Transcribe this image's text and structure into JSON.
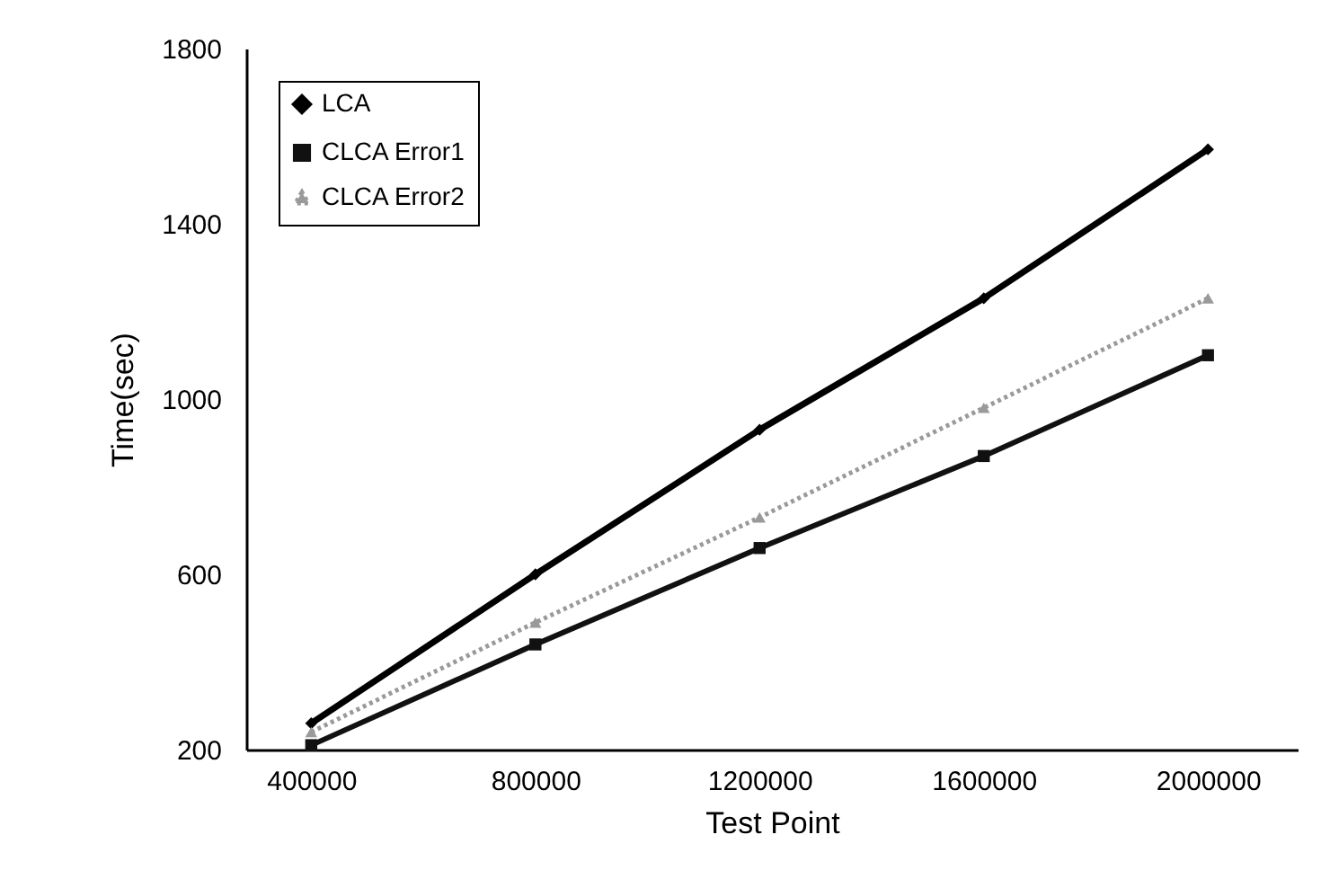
{
  "chart_data": {
    "type": "line",
    "xlabel": "Test Point",
    "ylabel": "Time(sec)",
    "categories": [
      "400000",
      "800000",
      "1200000",
      "1600000",
      "2000000"
    ],
    "series": [
      {
        "name": "LCA",
        "color": "#000000",
        "marker": "diamond",
        "line_style": "solid",
        "values": [
          260,
          600,
          930,
          1230,
          1570
        ]
      },
      {
        "name": "CLCA Error1",
        "color": "#111111",
        "marker": "square",
        "line_style": "solid",
        "values": [
          210,
          440,
          660,
          870,
          1100
        ]
      },
      {
        "name": "CLCA Error2",
        "color": "#9a9a9a",
        "marker": "triangle",
        "line_style": "dotted",
        "values": [
          240,
          490,
          730,
          980,
          1230
        ]
      }
    ],
    "ylim": [
      200,
      1800
    ],
    "yticks": [
      200,
      600,
      1000,
      1400,
      1800
    ],
    "grid": false,
    "legend": "top left"
  }
}
